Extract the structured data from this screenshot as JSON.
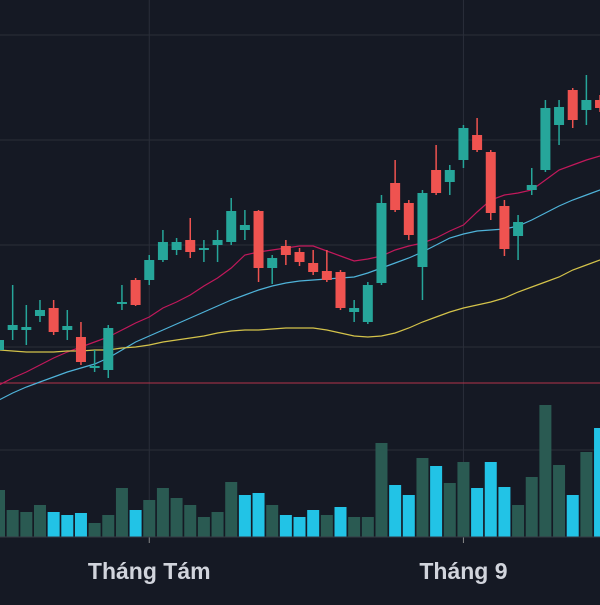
{
  "chart_data": {
    "type": "candlestick",
    "categories": [
      null,
      null,
      null,
      null,
      null,
      null,
      null,
      null,
      null,
      null,
      null,
      "Tháng Tám",
      null,
      null,
      null,
      null,
      null,
      null,
      null,
      null,
      null,
      null,
      null,
      null,
      null,
      null,
      null,
      null,
      null,
      null,
      null,
      null,
      null,
      null,
      "Tháng 9",
      null,
      null,
      null,
      null,
      null,
      null,
      null,
      null,
      null,
      null
    ],
    "open": [
      18.7,
      20.7,
      20.7,
      22.1,
      22.9,
      20.7,
      20.0,
      16.9,
      16.7,
      23.3,
      25.7,
      25.7,
      27.7,
      28.7,
      29.7,
      28.7,
      29.2,
      29.5,
      30.7,
      32.6,
      26.9,
      29.1,
      28.5,
      27.4,
      26.6,
      26.5,
      22.5,
      21.5,
      25.4,
      35.4,
      33.4,
      27.0,
      36.7,
      35.5,
      37.7,
      40.2,
      38.5,
      33.1,
      30.1,
      34.7,
      36.7,
      41.2,
      44.7,
      42.7,
      43.7
    ],
    "high": [
      21.7,
      25.2,
      23.2,
      23.7,
      23.7,
      22.7,
      21.5,
      18.7,
      21.2,
      25.2,
      25.9,
      28.2,
      30.7,
      29.9,
      31.9,
      29.7,
      30.7,
      33.9,
      32.7,
      32.7,
      28.2,
      29.7,
      28.9,
      28.7,
      28.7,
      26.7,
      23.7,
      25.5,
      34.2,
      37.7,
      33.7,
      34.7,
      39.2,
      37.2,
      41.2,
      41.9,
      38.7,
      33.7,
      32.2,
      36.9,
      43.7,
      43.7,
      44.9,
      46.2,
      44.2
    ],
    "low": [
      17.7,
      19.7,
      19.2,
      21.5,
      20.2,
      19.7,
      17.2,
      16.5,
      15.9,
      22.7,
      23.1,
      25.2,
      27.5,
      28.2,
      27.9,
      27.5,
      27.5,
      29.2,
      29.7,
      25.5,
      25.3,
      27.2,
      27.1,
      26.2,
      25.5,
      22.7,
      21.5,
      21.3,
      25.2,
      32.5,
      29.7,
      23.7,
      34.2,
      34.2,
      36.9,
      38.5,
      31.7,
      28.1,
      27.7,
      34.2,
      36.5,
      39.2,
      40.9,
      41.2,
      42.5
    ],
    "close": [
      19.7,
      21.2,
      21.0,
      22.7,
      20.5,
      21.1,
      17.5,
      17.1,
      20.9,
      23.5,
      23.2,
      27.7,
      29.5,
      29.5,
      28.5,
      28.9,
      29.7,
      32.6,
      31.2,
      26.9,
      27.9,
      28.2,
      27.5,
      26.5,
      25.7,
      22.9,
      22.9,
      25.2,
      33.4,
      32.7,
      30.2,
      34.4,
      34.4,
      36.7,
      40.9,
      38.7,
      32.4,
      28.8,
      31.5,
      35.2,
      42.9,
      43.0,
      41.7,
      43.7,
      42.9
    ],
    "up_color": "#26a69a",
    "down_color": "#ef5350",
    "overlays": [
      {
        "color": "#c2185b",
        "values": [
          15.2,
          15.9,
          16.5,
          17.2,
          17.9,
          18.5,
          19.0,
          19.5,
          20.0,
          20.7,
          21.4,
          22.0,
          22.9,
          23.5,
          24.2,
          25.1,
          25.9,
          26.9,
          28.2,
          28.5,
          28.7,
          28.9,
          29.1,
          29.1,
          28.6,
          28.1,
          27.6,
          27.8,
          28.1,
          28.7,
          29.1,
          29.4,
          29.9,
          30.6,
          31.2,
          32.5,
          33.7,
          34.2,
          34.4,
          34.7,
          35.7,
          36.7,
          37.2,
          37.7,
          38.1
        ]
      },
      {
        "color": "#4fb3d9",
        "values": [
          13.7,
          14.4,
          15.0,
          15.5,
          16.0,
          16.5,
          16.9,
          17.3,
          17.9,
          18.7,
          19.5,
          20.1,
          20.7,
          21.3,
          21.9,
          22.5,
          23.1,
          23.7,
          24.2,
          24.7,
          25.1,
          25.4,
          25.6,
          25.7,
          25.8,
          25.9,
          26.0,
          26.4,
          26.9,
          27.4,
          27.9,
          28.5,
          29.2,
          29.9,
          30.3,
          30.6,
          30.7,
          30.8,
          31.1,
          31.7,
          32.4,
          33.1,
          33.7,
          34.2,
          34.7
        ]
      },
      {
        "color": "#d4c34a",
        "values": [
          18.7,
          18.6,
          18.5,
          18.5,
          18.5,
          18.6,
          18.6,
          18.7,
          18.7,
          18.9,
          19.0,
          19.2,
          19.5,
          19.7,
          19.9,
          20.1,
          20.4,
          20.6,
          20.7,
          20.7,
          20.8,
          20.9,
          20.9,
          20.9,
          20.7,
          20.4,
          20.1,
          20.0,
          20.1,
          20.4,
          20.9,
          21.5,
          22.0,
          22.5,
          22.9,
          23.2,
          23.5,
          23.9,
          24.5,
          25.0,
          25.5,
          26.0,
          26.7,
          27.2,
          27.7
        ]
      }
    ],
    "volume": {
      "values": [
        47,
        27,
        25,
        32,
        25,
        22,
        24,
        14,
        22,
        49,
        27,
        37,
        49,
        39,
        32,
        20,
        25,
        55,
        42,
        44,
        32,
        22,
        20,
        27,
        22,
        30,
        20,
        20,
        94,
        52,
        42,
        79,
        71,
        54,
        75,
        49,
        75,
        50,
        32,
        60,
        132,
        72,
        42,
        85,
        109
      ],
      "colors": [
        "#2a5a52",
        "#2a5a52",
        "#2a5a52",
        "#2a5a52",
        "#22c3e6",
        "#22c3e6",
        "#22c3e6",
        "#2a5a52",
        "#2a5a52",
        "#2a5a52",
        "#22c3e6",
        "#2a5a52",
        "#2a5a52",
        "#2a5a52",
        "#2a5a52",
        "#2a5a52",
        "#2a5a52",
        "#2a5a52",
        "#22c3e6",
        "#22c3e6",
        "#2a5a52",
        "#22c3e6",
        "#22c3e6",
        "#22c3e6",
        "#2a5a52",
        "#22c3e6",
        "#2a5a52",
        "#2a5a52",
        "#2a5a52",
        "#22c3e6",
        "#22c3e6",
        "#2a5a52",
        "#22c3e6",
        "#2a5a52",
        "#2a5a52",
        "#22c3e6",
        "#22c3e6",
        "#22c3e6",
        "#2a5a52",
        "#2a5a52",
        "#2a5a52",
        "#2a5a52",
        "#22c3e6",
        "#2a5a52",
        "#22c3e6"
      ],
      "ylim": [
        0,
        537
      ]
    },
    "price_line": {
      "value": 15.4,
      "color": "#b2334a"
    },
    "gridlines": [
      50.2,
      39.7,
      29.2,
      19.0,
      8.7
    ],
    "ylim": [
      0,
      53.7
    ],
    "background": "#151924"
  }
}
